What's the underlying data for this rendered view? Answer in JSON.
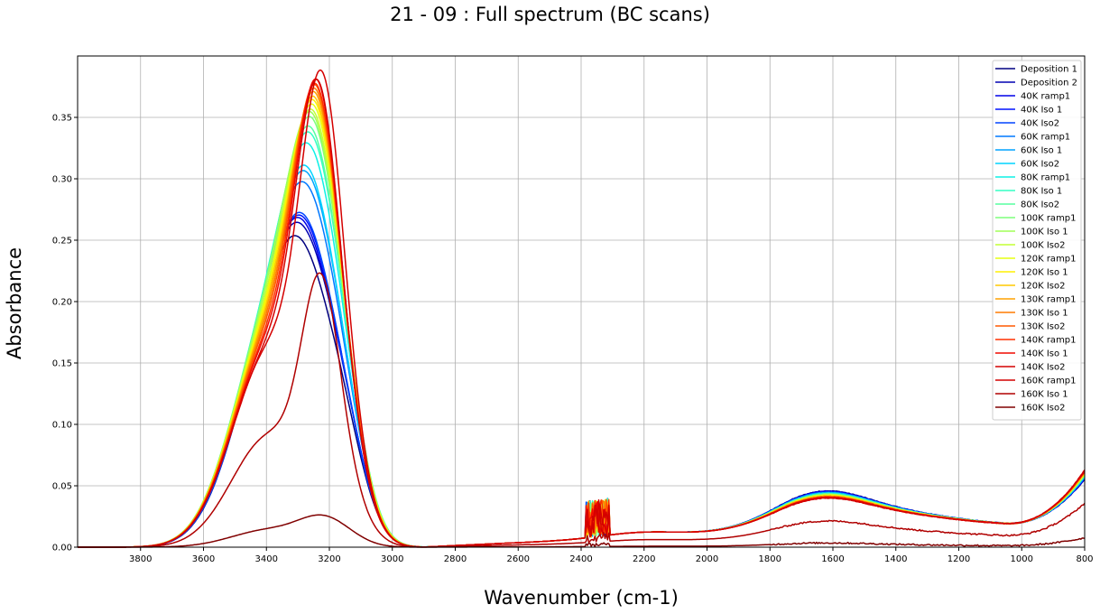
{
  "chart_data": {
    "type": "line",
    "title": "21 - 09 : Full spectrum (BC scans)",
    "xlabel": "Wavenumber (cm-1)",
    "ylabel": "Absorbance",
    "xlim": [
      4000,
      800
    ],
    "ylim": [
      0,
      0.4
    ],
    "grid": true,
    "legend_position": "top-right",
    "x_ticks": [
      "3800",
      "3600",
      "3400",
      "3200",
      "3000",
      "2800",
      "2600",
      "2400",
      "2200",
      "2000",
      "1800",
      "1600",
      "1400",
      "1200",
      "1000",
      "800"
    ],
    "y_ticks": [
      "0.00",
      "0.05",
      "0.10",
      "0.15",
      "0.20",
      "0.25",
      "0.30",
      "0.35"
    ],
    "series": [
      {
        "name": "Deposition 1",
        "color": "#000080",
        "peak_y": 0.262,
        "peak_x": 3275
      },
      {
        "name": "Deposition 2",
        "color": "#0000b2",
        "peak_y": 0.275,
        "peak_x": 3270
      },
      {
        "name": "40K ramp1",
        "color": "#0000e8",
        "peak_y": 0.278,
        "peak_x": 3270
      },
      {
        "name": "40K Iso 1",
        "color": "#0014ff",
        "peak_y": 0.28,
        "peak_x": 3268
      },
      {
        "name": "40K Iso2",
        "color": "#0044ff",
        "peak_y": 0.281,
        "peak_x": 3268
      },
      {
        "name": "60K ramp1",
        "color": "#0078ff",
        "peak_y": 0.309,
        "peak_x": 3262
      },
      {
        "name": "60K Iso 1",
        "color": "#00a4ff",
        "peak_y": 0.318,
        "peak_x": 3260
      },
      {
        "name": "60K Iso2",
        "color": "#00d4ff",
        "peak_y": 0.321,
        "peak_x": 3260
      },
      {
        "name": "80K ramp1",
        "color": "#0df0e6",
        "peak_y": 0.341,
        "peak_x": 3255
      },
      {
        "name": "80K Iso 1",
        "color": "#33ffc4",
        "peak_y": 0.35,
        "peak_x": 3252
      },
      {
        "name": "80K Iso2",
        "color": "#56ffa0",
        "peak_y": 0.353,
        "peak_x": 3252
      },
      {
        "name": "100K ramp1",
        "color": "#7dff7a",
        "peak_y": 0.36,
        "peak_x": 3250
      },
      {
        "name": "100K Iso 1",
        "color": "#a0ff56",
        "peak_y": 0.362,
        "peak_x": 3250
      },
      {
        "name": "100K Iso2",
        "color": "#c4ff33",
        "peak_y": 0.363,
        "peak_x": 3248
      },
      {
        "name": "120K ramp1",
        "color": "#e6ff10",
        "peak_y": 0.366,
        "peak_x": 3246
      },
      {
        "name": "120K Iso 1",
        "color": "#fff000",
        "peak_y": 0.368,
        "peak_x": 3245
      },
      {
        "name": "120K Iso2",
        "color": "#ffc800",
        "peak_y": 0.369,
        "peak_x": 3244
      },
      {
        "name": "130K ramp1",
        "color": "#ffa000",
        "peak_y": 0.371,
        "peak_x": 3243
      },
      {
        "name": "130K Iso 1",
        "color": "#ff7c00",
        "peak_y": 0.372,
        "peak_x": 3242
      },
      {
        "name": "130K Iso2",
        "color": "#ff5800",
        "peak_y": 0.373,
        "peak_x": 3241
      },
      {
        "name": "140K ramp1",
        "color": "#ff3000",
        "peak_y": 0.372,
        "peak_x": 3240
      },
      {
        "name": "140K Iso 1",
        "color": "#f00a00",
        "peak_y": 0.374,
        "peak_x": 3238
      },
      {
        "name": "140K Iso2",
        "color": "#d40000",
        "peak_y": 0.372,
        "peak_x": 3236
      },
      {
        "name": "160K ramp1",
        "color": "#d40000",
        "peak_y": 0.38,
        "peak_x": 3225
      },
      {
        "name": "160K Iso 1",
        "color": "#b00000",
        "peak_y": 0.236,
        "peak_x": 3228
      },
      {
        "name": "160K Iso2",
        "color": "#800000",
        "peak_y": 0.033,
        "peak_x": 3225
      }
    ]
  }
}
